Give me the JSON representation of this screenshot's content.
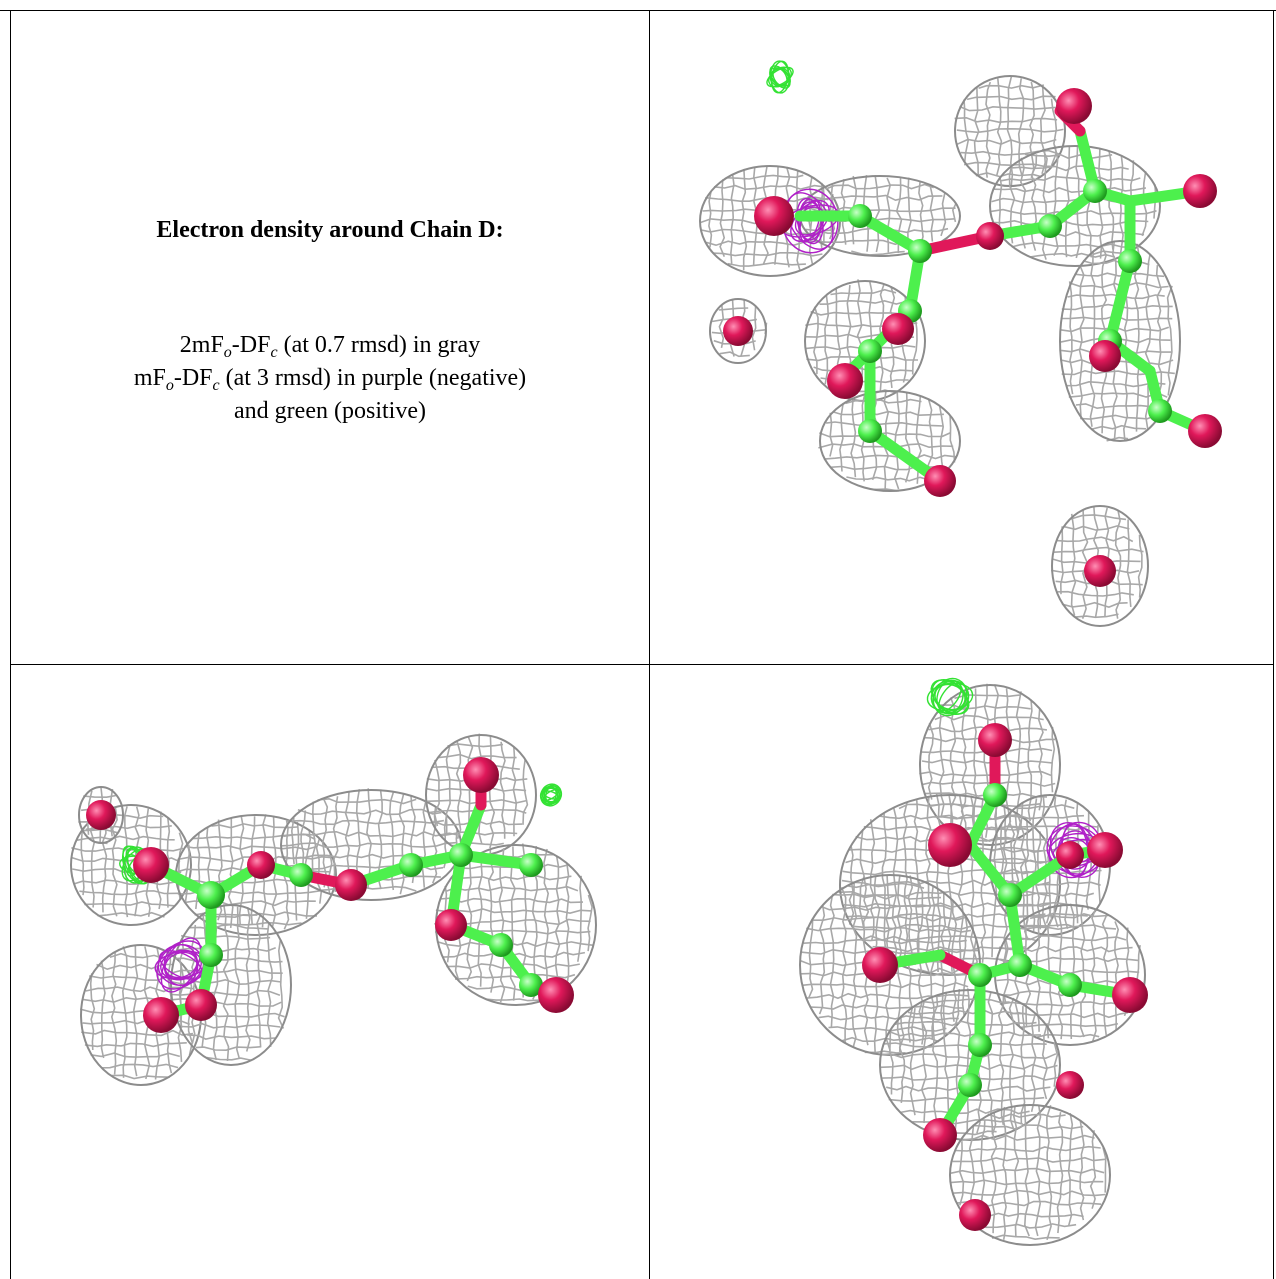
{
  "caption": {
    "title": "Electron density around Chain D:",
    "line1_prefix": "2mF",
    "line1_sub_o": "o",
    "line1_mid": "-DF",
    "line1_sub_c": "c",
    "line1_suffix": " (at 0.7 rmsd) in gray",
    "line2_prefix": "mF",
    "line2_sub_o": "o",
    "line2_mid": "-DF",
    "line2_sub_c": "c",
    "line2_suffix": " (at 3 rmsd) in purple (negative)",
    "line3": "and green (positive)"
  },
  "colors": {
    "mesh_2fofc": "#a8a8a8",
    "negative_difference": "#b020c8",
    "positive_difference": "#33e233",
    "carbon": "#4df04d",
    "oxygen": "#e0185a"
  },
  "panels": [
    {
      "name": "view-1"
    },
    {
      "name": "view-2"
    },
    {
      "name": "view-3"
    }
  ]
}
